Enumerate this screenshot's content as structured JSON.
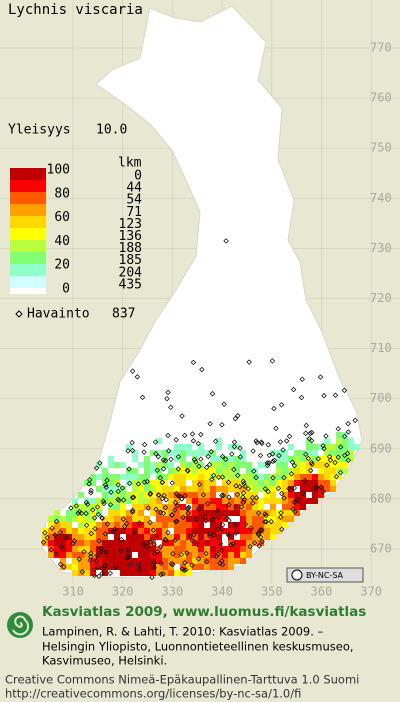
{
  "map": {
    "title": "Lychnis viscaria",
    "frequency": {
      "label": "Yleisyys",
      "value": "10.0"
    },
    "legend": {
      "scale": [
        100,
        80,
        60,
        40,
        20,
        0
      ],
      "count_header": "lkm",
      "counts": [
        0,
        44,
        54,
        71,
        123,
        136,
        188,
        185,
        204,
        435
      ]
    },
    "observations": {
      "label": "Havainto",
      "value": 837
    },
    "grid": {
      "north": [
        770,
        760,
        750,
        740,
        730,
        720,
        710,
        700,
        690,
        680,
        670
      ],
      "east": [
        310,
        320,
        330,
        340,
        350,
        360,
        370
      ]
    },
    "license_badge": "BY-NC-SA"
  },
  "footer": {
    "heading": "Kasviatlas 2009, www.luomus.fi/kasviatlas",
    "citation": [
      "Lampinen, R. & Lahti, T. 2010: Kasviatlas 2009. –",
      "Helsingin Yliopisto, Luonnontieteellinen keskusmuseo,",
      "Kasvimuseo, Helsinki."
    ],
    "license": [
      "Creative Commons Nimeä-Epäkaupallinen-Tarttuva 1.0 Suomi",
      "http://creativecommons.org/licenses/by-nc-sa/1.0/fi"
    ]
  }
}
